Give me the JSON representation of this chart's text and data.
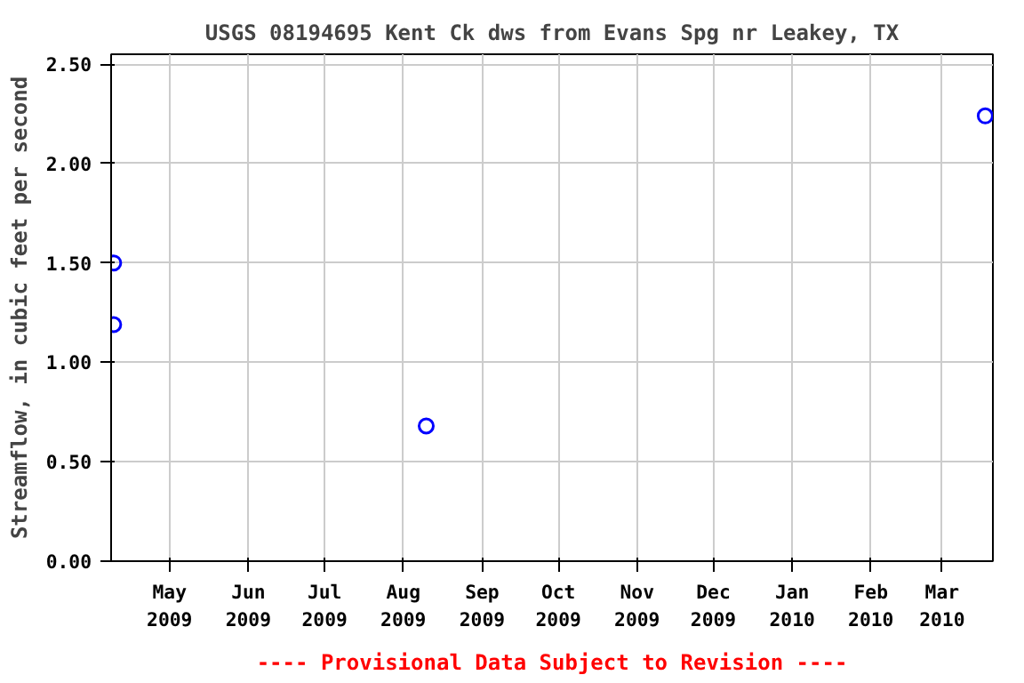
{
  "chart_data": {
    "type": "scatter",
    "title": "USGS 08194695 Kent Ck dws from Evans Spg nr Leakey, TX",
    "ylabel": "Streamflow, in cubic feet per second",
    "annotations": [
      "---- Provisional Data Subject to Revision ----"
    ],
    "x": [
      "2009-04-09",
      "2009-04-09",
      "2009-08-10",
      "2010-03-18"
    ],
    "series": [
      {
        "color": "#0000ff",
        "values": [
          1.5,
          1.19,
          0.68,
          2.24
        ]
      }
    ],
    "xlim": [
      "2009-04-08",
      "2010-03-21"
    ],
    "xticks": [
      {
        "value": "2009-05-01",
        "label": "May\n2009"
      },
      {
        "value": "2009-06-01",
        "label": "Jun\n2009"
      },
      {
        "value": "2009-07-01",
        "label": "Jul\n2009"
      },
      {
        "value": "2009-08-01",
        "label": "Aug\n2009"
      },
      {
        "value": "2009-09-01",
        "label": "Sep\n2009"
      },
      {
        "value": "2009-10-01",
        "label": "Oct\n2009"
      },
      {
        "value": "2009-11-01",
        "label": "Nov\n2009"
      },
      {
        "value": "2009-12-01",
        "label": "Dec\n2009"
      },
      {
        "value": "2010-01-01",
        "label": "Jan\n2010"
      },
      {
        "value": "2010-02-01",
        "label": "Feb\n2010"
      },
      {
        "value": "2010-03-01",
        "label": "Mar\n2010"
      }
    ],
    "ylim": [
      0,
      2.55
    ],
    "yticks": [
      {
        "value": 0,
        "label": "0.00"
      },
      {
        "value": 0.5,
        "label": "0.50"
      },
      {
        "value": 1.0,
        "label": "1.00"
      },
      {
        "value": 1.5,
        "label": "1.50"
      },
      {
        "value": 2.0,
        "label": "2.00"
      },
      {
        "value": 2.5,
        "label": "2.50"
      }
    ],
    "grid": true,
    "marker": "circle"
  }
}
